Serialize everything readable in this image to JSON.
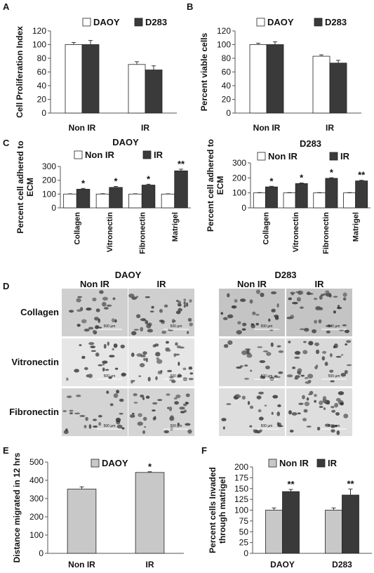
{
  "panel_letters": [
    "A",
    "B",
    "C",
    "D",
    "E",
    "F"
  ],
  "colors": {
    "white_bar": "#ffffff",
    "dark_bar": "#3a3a3a",
    "gray_bar": "#c8c8c8",
    "stroke": "#222222"
  },
  "panel_d": {
    "groups": [
      {
        "title": "DAOY",
        "cols": [
          "Non IR",
          "IR"
        ]
      },
      {
        "title": "D283",
        "cols": [
          "Non IR",
          "IR"
        ]
      }
    ],
    "rows": [
      "Collagen",
      "Vitronectin",
      "Fibronectin"
    ],
    "scale_label": "500 µm"
  },
  "chart_data": [
    {
      "id": "A",
      "type": "bar",
      "title": "",
      "ylabel": "Cell Proliferation Index",
      "xlabel": "",
      "ylim": [
        0,
        120
      ],
      "yticks": [
        0,
        20,
        40,
        60,
        80,
        100,
        120
      ],
      "categories": [
        "Non IR",
        "IR"
      ],
      "legend_position": "top",
      "series": [
        {
          "name": "DAOY",
          "color": "#ffffff",
          "values": [
            100,
            71
          ],
          "errors": [
            3,
            4
          ]
        },
        {
          "name": "D283",
          "color": "#3a3a3a",
          "values": [
            100,
            63
          ],
          "errors": [
            6,
            6
          ]
        }
      ],
      "annotations": []
    },
    {
      "id": "B",
      "type": "bar",
      "title": "",
      "ylabel": "Percent viable cells",
      "xlabel": "",
      "ylim": [
        0,
        120
      ],
      "yticks": [
        0,
        20,
        40,
        60,
        80,
        100,
        120
      ],
      "categories": [
        "Non IR",
        "IR"
      ],
      "legend_position": "top",
      "series": [
        {
          "name": "DAOY",
          "color": "#ffffff",
          "values": [
            100,
            83
          ],
          "errors": [
            2,
            2
          ]
        },
        {
          "name": "D283",
          "color": "#3a3a3a",
          "values": [
            100,
            73
          ],
          "errors": [
            4,
            4
          ]
        }
      ],
      "annotations": []
    },
    {
      "id": "C1",
      "type": "bar",
      "title": "DAOY",
      "ylabel": "Percent cell adhered to ECM",
      "xlabel": "",
      "ylim": [
        0,
        300
      ],
      "yticks": [
        0,
        100,
        200,
        300
      ],
      "categories": [
        "Collagen",
        "Vitronectin",
        "Fibronectin",
        "Matrigel"
      ],
      "legend_position": "top",
      "series": [
        {
          "name": "Non IR",
          "color": "#ffffff",
          "values": [
            100,
            100,
            100,
            100
          ],
          "errors": [
            2,
            3,
            2,
            2
          ]
        },
        {
          "name": "IR",
          "color": "#3a3a3a",
          "values": [
            135,
            148,
            165,
            268
          ],
          "errors": [
            6,
            7,
            6,
            12
          ]
        }
      ],
      "annotations": [
        "*",
        "*",
        "*",
        "**"
      ]
    },
    {
      "id": "C2",
      "type": "bar",
      "title": "D283",
      "ylabel": "Percent cell adhered to ECM",
      "xlabel": "",
      "ylim": [
        0,
        300
      ],
      "yticks": [
        0,
        100,
        200,
        300
      ],
      "categories": [
        "Collagen",
        "Vitronectin",
        "Fibronectin",
        "Matrigel"
      ],
      "legend_position": "top",
      "series": [
        {
          "name": "Non IR",
          "color": "#ffffff",
          "values": [
            100,
            100,
            100,
            100
          ],
          "errors": [
            2,
            2,
            2,
            2
          ]
        },
        {
          "name": "IR",
          "color": "#3a3a3a",
          "values": [
            140,
            162,
            197,
            180
          ],
          "errors": [
            4,
            4,
            4,
            4
          ]
        }
      ],
      "annotations": [
        "*",
        "*",
        "*",
        "**"
      ]
    },
    {
      "id": "E",
      "type": "bar",
      "title": "",
      "ylabel": "Distance migrated in 12 hrs",
      "xlabel": "",
      "ylim": [
        0,
        500
      ],
      "yticks": [
        0,
        100,
        200,
        300,
        400,
        500
      ],
      "categories": [
        "Non IR",
        "IR"
      ],
      "legend_position": "top",
      "single_series_per_category": true,
      "series": [
        {
          "name": "DAOY",
          "color": "#c8c8c8",
          "values": [
            352,
            443
          ],
          "errors": [
            12,
            4
          ]
        }
      ],
      "annotations": [
        "",
        "*"
      ]
    },
    {
      "id": "F",
      "type": "bar",
      "title": "",
      "ylabel": "Percent cells Invaded through matrigel",
      "xlabel": "",
      "ylim": [
        0,
        200
      ],
      "yticks": [
        0,
        25,
        50,
        75,
        100,
        125,
        150,
        175,
        200
      ],
      "categories": [
        "DAOY",
        "D283"
      ],
      "legend_position": "top",
      "series": [
        {
          "name": "Non IR",
          "color": "#c8c8c8",
          "values": [
            100,
            100
          ],
          "errors": [
            5,
            5
          ]
        },
        {
          "name": "IR",
          "color": "#3a3a3a",
          "values": [
            143,
            135
          ],
          "errors": [
            5,
            14
          ]
        }
      ],
      "annotations": [
        "**",
        "**"
      ]
    }
  ]
}
